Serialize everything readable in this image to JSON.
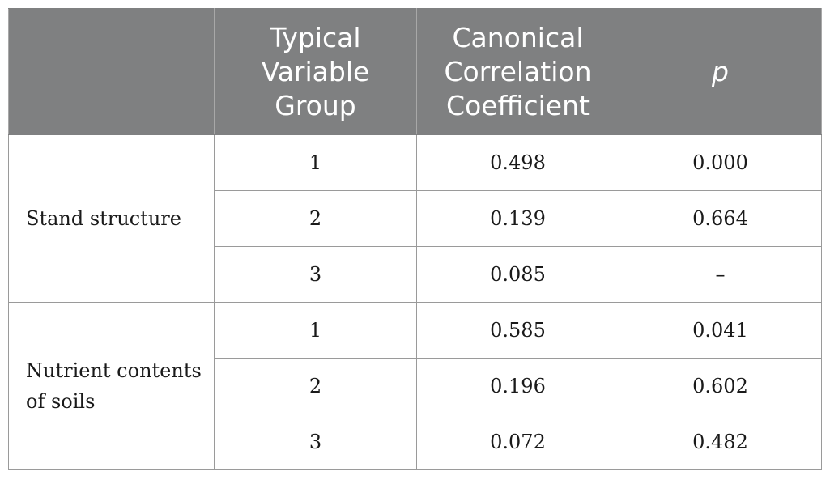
{
  "table": {
    "headers": [
      "",
      "Typical Variable Group",
      "Canonical Correlation Coefficient",
      "p"
    ],
    "header_lines": {
      "typical": [
        "Typical",
        "Variable",
        "Group"
      ],
      "canonical": [
        "Canonical",
        "Correlation",
        "Coefficient"
      ],
      "p": "p"
    },
    "groups": [
      {
        "label_lines": [
          "Stand structure"
        ],
        "rows": [
          {
            "group": "1",
            "coefficient": "0.498",
            "p": "0.000"
          },
          {
            "group": "2",
            "coefficient": "0.139",
            "p": "0.664"
          },
          {
            "group": "3",
            "coefficient": "0.085",
            "p": "–"
          }
        ]
      },
      {
        "label_lines": [
          "Nutrient contents",
          "of soils"
        ],
        "rows": [
          {
            "group": "1",
            "coefficient": "0.585",
            "p": "0.041"
          },
          {
            "group": "2",
            "coefficient": "0.196",
            "p": "0.602"
          },
          {
            "group": "3",
            "coefficient": "0.072",
            "p": "0.482"
          }
        ]
      }
    ]
  }
}
